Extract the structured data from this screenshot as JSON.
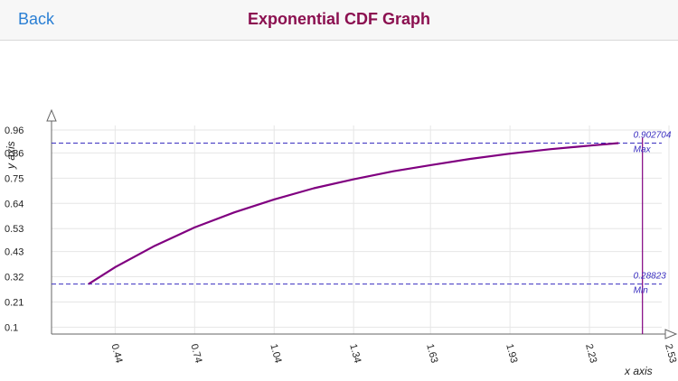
{
  "navbar": {
    "back_label": "Back",
    "title": "Exponential CDF Graph"
  },
  "colors": {
    "title": "#8b1050",
    "back": "#2a7fd4",
    "curve": "#800080",
    "marker": "#3a2fc0"
  },
  "chart_data": {
    "type": "line",
    "xlabel": "x axis",
    "ylabel": "y axis",
    "xlim": [
      0.2,
      2.53
    ],
    "ylim": [
      0.07,
      0.96
    ],
    "x_ticks": [
      "0.44",
      "0.74",
      "1.04",
      "1.34",
      "1.63",
      "1.93",
      "2.23",
      "2.53"
    ],
    "y_ticks": [
      "0.96",
      "0.86",
      "0.75",
      "0.64",
      "0.53",
      "0.43",
      "0.32",
      "0.21",
      "0.1"
    ],
    "grid": true,
    "series": [
      {
        "x": [
          0.34,
          0.44,
          0.59,
          0.74,
          0.89,
          1.04,
          1.19,
          1.34,
          1.49,
          1.63,
          1.78,
          1.93,
          2.08,
          2.23,
          2.34
        ],
        "y": [
          0.28823,
          0.362,
          0.455,
          0.535,
          0.601,
          0.657,
          0.706,
          0.745,
          0.78,
          0.807,
          0.834,
          0.857,
          0.876,
          0.892,
          0.902704
        ]
      }
    ],
    "max_marker": {
      "value": "0.902704",
      "label": "Max"
    },
    "min_marker": {
      "value": "0.28823",
      "label": "Min"
    },
    "upper_x_bound": 2.43
  }
}
